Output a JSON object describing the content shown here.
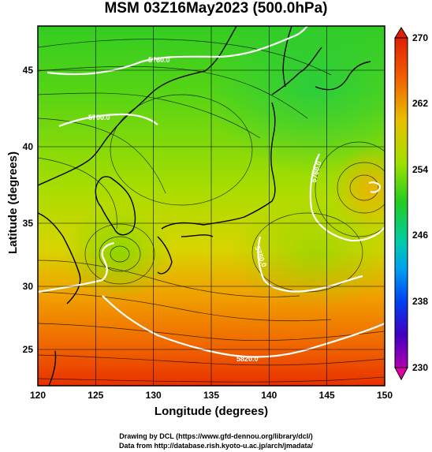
{
  "title": "MSM 03Z16May2023 (500.0hPa)",
  "xlabel": "Longitude (degrees)",
  "ylabel": "Latitude  (degrees)",
  "credits": [
    "Drawing by DCL (https://www.gfd-dennou.org/library/dcl/)",
    "Data from http://database.rish.kyoto-u.ac.jp/arch/jmadata/"
  ],
  "x_ticks": [
    "120",
    "125",
    "130",
    "135",
    "140",
    "145",
    "150"
  ],
  "y_ticks": [
    "25",
    "30",
    "35",
    "40",
    "45"
  ],
  "colorbar_ticks": [
    "270",
    "262",
    "254",
    "246",
    "238",
    "230"
  ],
  "contour_labels": [
    "5760.0",
    "5700.0",
    "5760.0",
    "5820.0",
    "5760.0",
    "5880.0"
  ],
  "chart_data": {
    "type": "heatmap",
    "xlim": [
      120,
      150
    ],
    "ylim": [
      22.5,
      47.8
    ],
    "colorbar_range": [
      230,
      270
    ],
    "colors": {
      "cold": "#a000a0",
      "mid": "#22cc22",
      "warm": "#e02000",
      "contour": "#ffffff"
    }
  }
}
